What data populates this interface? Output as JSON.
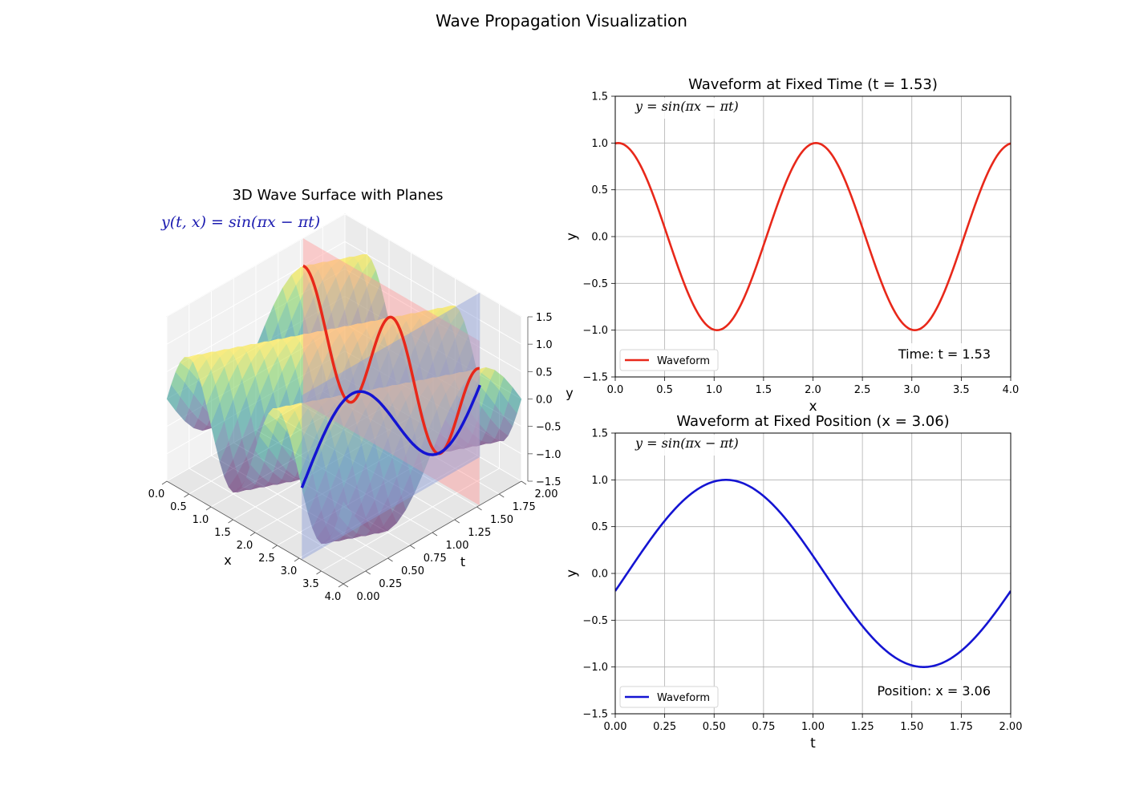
{
  "figure": {
    "title": "Wave Propagation Visualization"
  },
  "colors": {
    "red": "#e8281a",
    "blue": "#1414d2",
    "red_plane": "#ff9a9a",
    "blue_plane": "#8a9bd8",
    "grid": "#b0b0b0"
  },
  "chart_data": [
    {
      "id": "surface3d",
      "type": "surface3d",
      "title": "3D Wave Surface with Planes",
      "equation": "y(t, x) = sin(πx − πt)",
      "equation_parts": {
        "lhs": "y(t, x) = sin(πx − πt)"
      },
      "xlabel": "x",
      "tlabel": "t",
      "zlabel": "y",
      "xlim": [
        0,
        4
      ],
      "tlim": [
        0,
        2
      ],
      "zlim": [
        -1.5,
        1.5
      ],
      "x_ticks": [
        "0.0",
        "0.5",
        "1.0",
        "1.5",
        "2.0",
        "2.5",
        "3.0",
        "3.5",
        "4.0"
      ],
      "t_ticks": [
        "0.00",
        "0.25",
        "0.50",
        "0.75",
        "1.00",
        "1.25",
        "1.50",
        "1.75",
        "2.00"
      ],
      "z_ticks": [
        "1.5",
        "1.0",
        "0.5",
        "0.0",
        "−0.5",
        "−1.0",
        "−1.5"
      ],
      "fixed_time_plane_t": 1.53,
      "fixed_position_plane_x": 3.06,
      "colormap": "viridis"
    },
    {
      "id": "fixed_time",
      "type": "line",
      "title": "Waveform at Fixed Time (t = 1.53)",
      "equation": "y = sin(πx − πt)",
      "xlabel": "x",
      "ylabel": "y",
      "xlim": [
        0,
        4
      ],
      "ylim": [
        -1.5,
        1.5
      ],
      "x_ticks": [
        "0.0",
        "0.5",
        "1.0",
        "1.5",
        "2.0",
        "2.5",
        "3.0",
        "3.5",
        "4.0"
      ],
      "y_ticks": [
        "1.5",
        "1.0",
        "0.5",
        "0.0",
        "−0.5",
        "−1.0",
        "−1.5"
      ],
      "series": [
        {
          "name": "Waveform",
          "function": "sin(πx − π·1.53)",
          "fixed_t": 1.53
        }
      ],
      "annotation": "Time: t = 1.53",
      "legend_position": "lower-left",
      "grid": true
    },
    {
      "id": "fixed_position",
      "type": "line",
      "title": "Waveform at Fixed Position (x = 3.06)",
      "equation": "y = sin(πx − πt)",
      "xlabel": "t",
      "ylabel": "y",
      "xlim": [
        0,
        2
      ],
      "ylim": [
        -1.5,
        1.5
      ],
      "x_ticks": [
        "0.00",
        "0.25",
        "0.50",
        "0.75",
        "1.00",
        "1.25",
        "1.50",
        "1.75",
        "2.00"
      ],
      "y_ticks": [
        "1.5",
        "1.0",
        "0.5",
        "0.0",
        "−0.5",
        "−1.0",
        "−1.5"
      ],
      "series": [
        {
          "name": "Waveform",
          "function": "sin(π·3.06 − πt)",
          "fixed_x": 3.06
        }
      ],
      "annotation": "Position: x = 3.06",
      "legend_position": "lower-left",
      "grid": true
    }
  ]
}
